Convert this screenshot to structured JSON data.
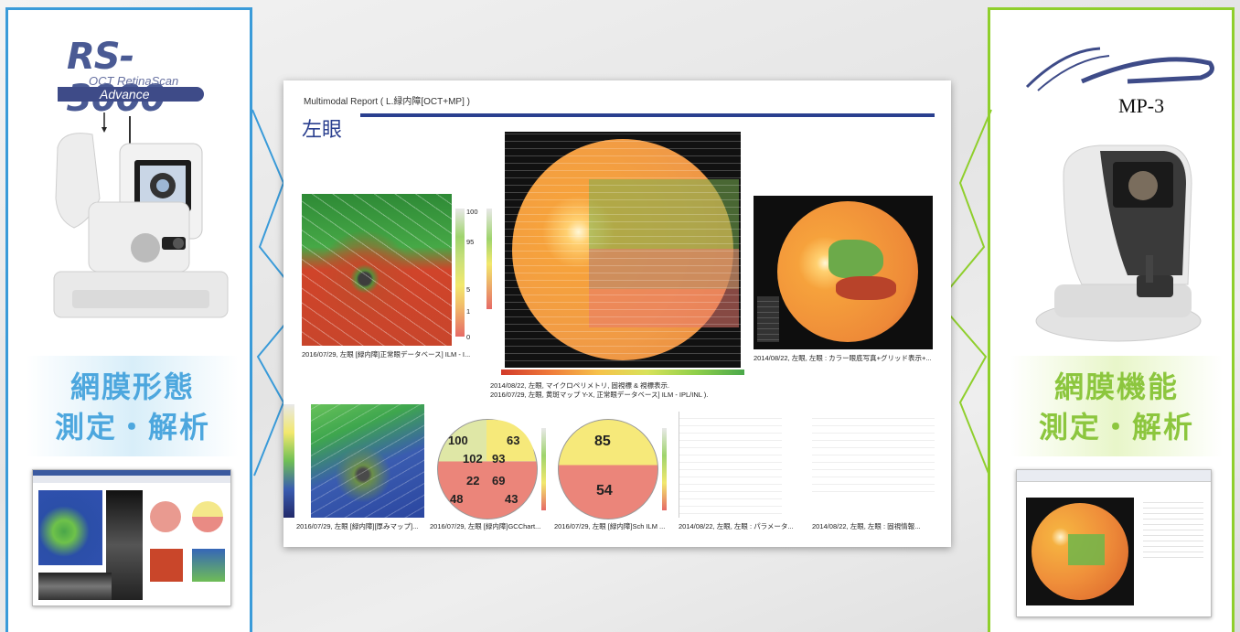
{
  "left_panel": {
    "logo_main": "RS-3000",
    "logo_sub": "OCT RetinaScan",
    "logo_edition": "Advance",
    "label_line1": "網膜形態",
    "label_line2": "測定・解析",
    "accent_color": "#3a9bd9"
  },
  "right_panel": {
    "logo_text": "MP-3",
    "label_line1": "網膜機能",
    "label_line2": "測定・解析",
    "accent_color": "#8fcf2c"
  },
  "report": {
    "title": "Multimodal Report ( L.緑内障[OCT+MP] )",
    "eye": "左眼",
    "captions": {
      "c1": "2016/07/29, 左眼 [緑内障]正常眼データベース] ILM - I...",
      "c2a": "2014/08/22, 左眼, マイクロペリメトリ, 固視標 & 視標表示.",
      "c2b": "2016/07/29, 左眼, 黄斑マップ Y-X, 正常眼データベース] ILM - IPL/INL ).",
      "c3": "2014/08/22, 左眼, 左眼 : カラー眼底写真+グリッド表示+...",
      "c4": "2016/07/29, 左眼 [緑内障][厚みマップ]...",
      "c5": "2016/07/29, 左眼 [緑内障]GCChart...",
      "c6": "2016/07/29, 左眼 [緑内障]Sch ILM ...",
      "c7": "2014/08/22, 左眼, 左眼 : パラメータ...",
      "c8": "2014/08/22, 左眼, 左眼 : 固視情報..."
    },
    "gcc_values": {
      "top_left": "100",
      "top_right": "63",
      "inner_left": "102",
      "inner_right": "93",
      "lower_left": "22",
      "lower_right": "69",
      "bottom_left": "48",
      "bottom_right": "43"
    },
    "sector_values": {
      "upper": "85",
      "lower": "54"
    },
    "scale_ticks": [
      "100",
      "95",
      "5",
      "1",
      "0"
    ]
  }
}
